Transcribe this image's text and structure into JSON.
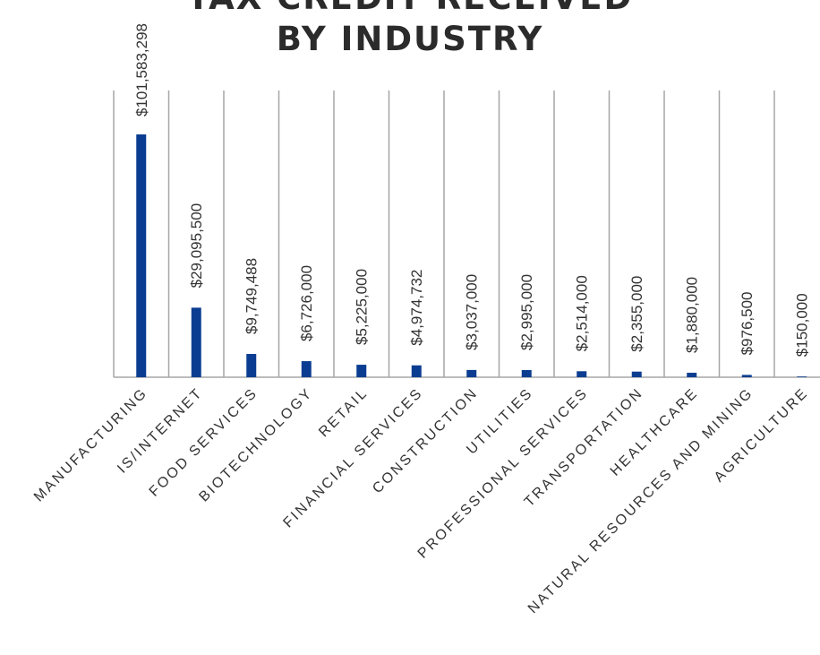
{
  "chart_data": {
    "type": "bar",
    "title_lines": [
      "TAX CREDIT RECEIVED",
      "BY INDUSTRY"
    ],
    "categories": [
      "MANUFACTURING",
      "IS/INTERNET",
      "FOOD SERVICES",
      "BIOTECHNOLOGY",
      "RETAIL",
      "FINANCIAL SERVICES",
      "CONSTRUCTION",
      "UTILITIES",
      "PROFESSIONAL SERVICES",
      "TRANSPORTATION",
      "HEALTHCARE",
      "NATURAL RESOURCES AND MINING",
      "AGRICULTURE"
    ],
    "values": [
      101583298,
      29095500,
      9749488,
      6726000,
      5225000,
      4974732,
      3037000,
      2995000,
      2514000,
      2355000,
      1880000,
      976500,
      150000
    ],
    "value_labels": [
      "$101,583,298",
      "$29,095,500",
      "$9,749,488",
      "$6,726,000",
      "$5,225,000",
      "$4,974,732",
      "$3,037,000",
      "$2,995,000",
      "$2,514,000",
      "$2,355,000",
      "$1,880,000",
      "$976,500",
      "$150,000"
    ],
    "ylim": [
      0,
      101583298
    ],
    "grid": "vertical",
    "legend": "none",
    "bar_color": "#0a3d91",
    "grid_color": "#a6a6a6"
  }
}
